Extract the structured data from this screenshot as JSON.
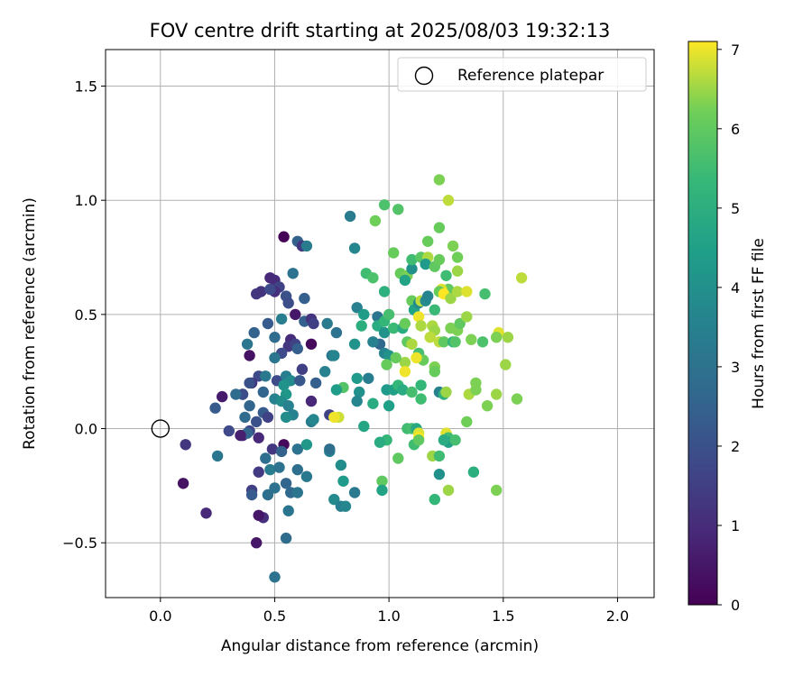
{
  "chart_data": {
    "type": "scatter",
    "title": "FOV centre drift starting at 2025/08/03 19:32:13",
    "xlabel": "Angular distance from reference (arcmin)",
    "ylabel": "Rotation from reference (arcmin)",
    "xlim": [
      -0.24,
      2.16
    ],
    "ylim": [
      -0.74,
      1.66
    ],
    "xticks": [
      0.0,
      0.5,
      1.0,
      1.5,
      2.0
    ],
    "xtick_labels": [
      "0.0",
      "0.5",
      "1.0",
      "1.5",
      "2.0"
    ],
    "yticks": [
      -0.5,
      0.0,
      0.5,
      1.0,
      1.5
    ],
    "ytick_labels": [
      "−0.5",
      "0.0",
      "0.5",
      "1.0",
      "1.5"
    ],
    "grid": true,
    "colormap": "viridis",
    "colorbar": {
      "label": "Hours from first FF file",
      "range": [
        0,
        7.1
      ],
      "ticks": [
        0,
        1,
        2,
        3,
        4,
        5,
        6,
        7
      ],
      "tick_labels": [
        "0",
        "1",
        "2",
        "3",
        "4",
        "5",
        "6",
        "7"
      ]
    },
    "legend": {
      "position": "top-right",
      "entries": [
        "Reference platepar"
      ]
    },
    "reference_point": {
      "x": 0.0,
      "y": 0.0,
      "label": "Reference platepar"
    },
    "points": [
      [
        0.54,
        0.84,
        0.05
      ],
      [
        0.6,
        0.82,
        2.5
      ],
      [
        0.62,
        0.8,
        1.3
      ],
      [
        0.64,
        0.8,
        3.3
      ],
      [
        0.83,
        0.93,
        3.3
      ],
      [
        0.85,
        0.79,
        3.7
      ],
      [
        0.48,
        0.66,
        0.9
      ],
      [
        0.5,
        0.65,
        1.0
      ],
      [
        0.52,
        0.62,
        1.6
      ],
      [
        0.42,
        0.59,
        1.3
      ],
      [
        0.44,
        0.6,
        1.2
      ],
      [
        0.5,
        0.6,
        1.1
      ],
      [
        0.48,
        0.61,
        1.8
      ],
      [
        0.55,
        0.58,
        2.0
      ],
      [
        0.58,
        0.68,
        3.0
      ],
      [
        0.56,
        0.55,
        1.9
      ],
      [
        0.59,
        0.5,
        0.5
      ],
      [
        0.63,
        0.57,
        2.4
      ],
      [
        0.63,
        0.47,
        2.4
      ],
      [
        0.66,
        0.48,
        1.2
      ],
      [
        0.67,
        0.46,
        1.5
      ],
      [
        0.53,
        0.48,
        3.4
      ],
      [
        0.47,
        0.46,
        2.3
      ],
      [
        0.41,
        0.42,
        2.5
      ],
      [
        0.38,
        0.37,
        3.1
      ],
      [
        0.5,
        0.4,
        2.8
      ],
      [
        0.57,
        0.39,
        1.0
      ],
      [
        0.56,
        0.36,
        1.3
      ],
      [
        0.59,
        0.37,
        1.6
      ],
      [
        0.6,
        0.35,
        2.4
      ],
      [
        0.66,
        0.37,
        0.2
      ],
      [
        0.53,
        0.33,
        1.8
      ],
      [
        0.5,
        0.31,
        3.1
      ],
      [
        0.39,
        0.32,
        0.4
      ],
      [
        0.43,
        0.23,
        1.8
      ],
      [
        0.46,
        0.23,
        3.2
      ],
      [
        0.51,
        0.21,
        1.8
      ],
      [
        0.55,
        0.23,
        3.4
      ],
      [
        0.57,
        0.21,
        3.8
      ],
      [
        0.54,
        0.19,
        4.1
      ],
      [
        0.55,
        0.15,
        4.2
      ],
      [
        0.62,
        0.26,
        1.5
      ],
      [
        0.61,
        0.21,
        2.2
      ],
      [
        0.68,
        0.2,
        2.4
      ],
      [
        0.72,
        0.25,
        3.5
      ],
      [
        0.66,
        0.12,
        0.9
      ],
      [
        0.73,
        0.46,
        3.3
      ],
      [
        0.77,
        0.42,
        3.0
      ],
      [
        0.75,
        0.32,
        3.1
      ],
      [
        0.76,
        0.32,
        3.6
      ],
      [
        0.4,
        0.2,
        1.3
      ],
      [
        0.39,
        0.2,
        2.0
      ],
      [
        0.36,
        0.15,
        2.7
      ],
      [
        0.39,
        0.1,
        2.6
      ],
      [
        0.37,
        0.05,
        2.8
      ],
      [
        0.45,
        0.16,
        2.6
      ],
      [
        0.5,
        0.13,
        3.5
      ],
      [
        0.53,
        0.12,
        3.9
      ],
      [
        0.56,
        0.1,
        3.5
      ],
      [
        0.58,
        0.06,
        3.5
      ],
      [
        0.55,
        0.05,
        3.9
      ],
      [
        0.45,
        0.07,
        2.3
      ],
      [
        0.47,
        0.05,
        1.6
      ],
      [
        0.42,
        0.03,
        2.0
      ],
      [
        0.39,
        -0.01,
        1.7
      ],
      [
        0.36,
        -0.03,
        0.9
      ],
      [
        0.38,
        -0.02,
        2.6
      ],
      [
        0.43,
        -0.04,
        0.9
      ],
      [
        0.49,
        -0.09,
        1.3
      ],
      [
        0.54,
        -0.07,
        0.2
      ],
      [
        0.53,
        -0.1,
        2.5
      ],
      [
        0.46,
        -0.13,
        2.9
      ],
      [
        0.43,
        -0.19,
        1.4
      ],
      [
        0.48,
        -0.18,
        3.3
      ],
      [
        0.52,
        -0.17,
        3.0
      ],
      [
        0.6,
        -0.18,
        2.9
      ],
      [
        0.64,
        -0.21,
        3.2
      ],
      [
        0.6,
        -0.09,
        3.0
      ],
      [
        0.64,
        -0.07,
        4.2
      ],
      [
        0.74,
        -0.1,
        3.5
      ],
      [
        0.74,
        -0.09,
        2.9
      ],
      [
        0.66,
        0.03,
        3.3
      ],
      [
        0.67,
        0.04,
        3.7
      ],
      [
        0.74,
        0.06,
        1.6
      ],
      [
        0.79,
        -0.16,
        3.9
      ],
      [
        0.8,
        -0.23,
        4.3
      ],
      [
        0.76,
        -0.31,
        3.8
      ],
      [
        0.79,
        -0.34,
        3.4
      ],
      [
        0.81,
        -0.34,
        3.7
      ],
      [
        0.85,
        -0.28,
        3.2
      ],
      [
        0.55,
        -0.24,
        2.6
      ],
      [
        0.57,
        -0.28,
        2.7
      ],
      [
        0.6,
        -0.28,
        3.1
      ],
      [
        0.5,
        -0.26,
        3.0
      ],
      [
        0.47,
        -0.29,
        2.9
      ],
      [
        0.4,
        -0.27,
        1.5
      ],
      [
        0.4,
        -0.29,
        2.3
      ],
      [
        0.45,
        -0.39,
        1.1
      ],
      [
        0.43,
        -0.38,
        0.5
      ],
      [
        0.42,
        -0.5,
        0.5
      ],
      [
        0.56,
        -0.36,
        3.1
      ],
      [
        0.55,
        -0.48,
        2.8
      ],
      [
        0.5,
        -0.65,
        3.0
      ],
      [
        0.11,
        -0.07,
        1.3
      ],
      [
        0.1,
        -0.24,
        0.4
      ],
      [
        0.2,
        -0.37,
        0.9
      ],
      [
        0.25,
        -0.12,
        3.1
      ],
      [
        0.3,
        -0.01,
        1.8
      ],
      [
        0.35,
        -0.03,
        0.7
      ],
      [
        0.24,
        0.09,
        2.3
      ],
      [
        0.27,
        0.14,
        0.6
      ],
      [
        0.36,
        0.15,
        1.9
      ],
      [
        0.33,
        0.15,
        2.8
      ],
      [
        0.86,
        0.53,
        3.5
      ],
      [
        0.89,
        0.5,
        4.4
      ],
      [
        0.95,
        0.49,
        3.1
      ],
      [
        0.95,
        0.45,
        4.9
      ],
      [
        0.98,
        0.47,
        5.3
      ],
      [
        0.98,
        0.42,
        4.1
      ],
      [
        0.96,
        0.37,
        2.7
      ],
      [
        0.93,
        0.38,
        3.5
      ],
      [
        0.98,
        0.33,
        3.6
      ],
      [
        1.0,
        0.32,
        4.1
      ],
      [
        0.88,
        0.45,
        5.0
      ],
      [
        0.9,
        0.68,
        5.5
      ],
      [
        0.93,
        0.66,
        5.7
      ],
      [
        0.98,
        0.6,
        5.1
      ],
      [
        1.0,
        0.5,
        5.6
      ],
      [
        1.02,
        0.44,
        5.4
      ],
      [
        1.06,
        0.44,
        4.9
      ],
      [
        1.07,
        0.46,
        6.1
      ],
      [
        1.02,
        0.77,
        6.1
      ],
      [
        0.98,
        0.98,
        5.7
      ],
      [
        1.04,
        0.96,
        5.8
      ],
      [
        0.94,
        0.91,
        6.2
      ],
      [
        1.05,
        0.68,
        6.1
      ],
      [
        1.08,
        0.67,
        6.3
      ],
      [
        1.07,
        0.65,
        4.6
      ],
      [
        1.1,
        0.7,
        4.0
      ],
      [
        1.1,
        0.74,
        5.5
      ],
      [
        1.14,
        0.75,
        5.9
      ],
      [
        1.17,
        0.75,
        6.6
      ],
      [
        1.16,
        0.72,
        4.3
      ],
      [
        1.2,
        0.71,
        6.0
      ],
      [
        1.22,
        0.74,
        6.1
      ],
      [
        1.17,
        0.82,
        6.1
      ],
      [
        1.22,
        0.88,
        6.1
      ],
      [
        1.22,
        1.09,
        6.3
      ],
      [
        1.26,
        1.0,
        6.7
      ],
      [
        1.28,
        0.8,
        6.3
      ],
      [
        1.3,
        0.75,
        6.2
      ],
      [
        1.25,
        0.67,
        5.5
      ],
      [
        1.3,
        0.69,
        6.5
      ],
      [
        1.26,
        0.61,
        6.0
      ],
      [
        1.23,
        0.61,
        6.9
      ],
      [
        1.22,
        0.6,
        6.1
      ],
      [
        1.24,
        0.59,
        7.1
      ],
      [
        1.27,
        0.57,
        6.5
      ],
      [
        1.3,
        0.6,
        6.6
      ],
      [
        1.34,
        0.6,
        6.9
      ],
      [
        1.42,
        0.59,
        5.6
      ],
      [
        1.58,
        0.66,
        6.7
      ],
      [
        1.1,
        0.56,
        6.1
      ],
      [
        1.11,
        0.52,
        4.6
      ],
      [
        1.13,
        0.55,
        3.8
      ],
      [
        1.13,
        0.49,
        7.0
      ],
      [
        1.14,
        0.56,
        6.7
      ],
      [
        1.14,
        0.45,
        6.6
      ],
      [
        1.16,
        0.56,
        3.8
      ],
      [
        1.17,
        0.58,
        3.6
      ],
      [
        1.2,
        0.52,
        5.4
      ],
      [
        1.19,
        0.45,
        6.6
      ],
      [
        1.2,
        0.43,
        6.5
      ],
      [
        1.18,
        0.4,
        6.7
      ],
      [
        1.22,
        0.38,
        6.7
      ],
      [
        1.24,
        0.38,
        6.0
      ],
      [
        1.27,
        0.44,
        6.3
      ],
      [
        1.3,
        0.43,
        6.3
      ],
      [
        1.31,
        0.46,
        6.0
      ],
      [
        1.34,
        0.49,
        6.5
      ],
      [
        1.28,
        0.38,
        5.2
      ],
      [
        1.29,
        0.38,
        5.8
      ],
      [
        1.36,
        0.39,
        6.3
      ],
      [
        1.41,
        0.38,
        5.7
      ],
      [
        1.48,
        0.42,
        6.9
      ],
      [
        1.47,
        0.4,
        6.3
      ],
      [
        1.52,
        0.4,
        6.5
      ],
      [
        1.08,
        0.38,
        6.0
      ],
      [
        1.1,
        0.37,
        6.6
      ],
      [
        1.13,
        0.33,
        5.6
      ],
      [
        1.15,
        0.3,
        6.1
      ],
      [
        1.2,
        0.27,
        6.3
      ],
      [
        1.07,
        0.29,
        6.5
      ],
      [
        1.12,
        0.31,
        7.0
      ],
      [
        1.03,
        0.31,
        6.1
      ],
      [
        1.07,
        0.25,
        7.0
      ],
      [
        0.99,
        0.28,
        6.1
      ],
      [
        0.99,
        0.17,
        4.3
      ],
      [
        1.02,
        0.17,
        4.5
      ],
      [
        1.04,
        0.19,
        5.3
      ],
      [
        1.06,
        0.17,
        4.9
      ],
      [
        1.1,
        0.16,
        5.6
      ],
      [
        1.14,
        0.13,
        5.5
      ],
      [
        1.14,
        0.19,
        5.3
      ],
      [
        1.2,
        0.25,
        6.1
      ],
      [
        1.22,
        0.16,
        3.5
      ],
      [
        1.24,
        0.15,
        5.1
      ],
      [
        1.25,
        0.16,
        6.5
      ],
      [
        1.35,
        0.15,
        6.6
      ],
      [
        1.38,
        0.17,
        6.3
      ],
      [
        1.38,
        0.2,
        6.3
      ],
      [
        1.43,
        0.1,
        6.3
      ],
      [
        1.47,
        0.15,
        6.5
      ],
      [
        1.51,
        0.28,
        6.5
      ],
      [
        1.56,
        0.13,
        6.3
      ],
      [
        0.87,
        0.16,
        4.0
      ],
      [
        0.86,
        0.12,
        3.7
      ],
      [
        0.86,
        0.22,
        4.3
      ],
      [
        0.8,
        0.18,
        5.8
      ],
      [
        0.77,
        0.17,
        4.4
      ],
      [
        0.85,
        0.37,
        4.1
      ],
      [
        0.91,
        0.22,
        3.4
      ],
      [
        0.93,
        0.11,
        4.9
      ],
      [
        1.0,
        0.1,
        4.5
      ],
      [
        0.78,
        0.05,
        6.8
      ],
      [
        0.76,
        0.05,
        7.0
      ],
      [
        0.89,
        0.01,
        4.7
      ],
      [
        1.08,
        0.0,
        5.5
      ],
      [
        1.1,
        0.0,
        5.6
      ],
      [
        1.12,
        0.0,
        4.8
      ],
      [
        1.13,
        -0.02,
        6.9
      ],
      [
        1.13,
        -0.04,
        7.1
      ],
      [
        1.11,
        -0.07,
        5.5
      ],
      [
        1.13,
        -0.05,
        6.0
      ],
      [
        1.19,
        -0.12,
        6.5
      ],
      [
        1.22,
        -0.12,
        5.5
      ],
      [
        1.25,
        -0.02,
        6.9
      ],
      [
        1.26,
        -0.04,
        5.5
      ],
      [
        1.26,
        -0.06,
        4.5
      ],
      [
        1.24,
        -0.05,
        4.9
      ],
      [
        1.29,
        -0.05,
        5.6
      ],
      [
        1.34,
        0.03,
        6.2
      ],
      [
        1.22,
        -0.2,
        4.0
      ],
      [
        1.26,
        -0.27,
        6.5
      ],
      [
        1.37,
        -0.19,
        5.0
      ],
      [
        1.47,
        -0.27,
        6.3
      ],
      [
        0.99,
        -0.05,
        5.3
      ],
      [
        1.04,
        -0.13,
        6.0
      ],
      [
        0.97,
        -0.23,
        6.0
      ],
      [
        0.97,
        -0.27,
        4.6
      ],
      [
        1.2,
        -0.31,
        5.3
      ],
      [
        0.96,
        -0.06,
        4.9
      ]
    ]
  }
}
